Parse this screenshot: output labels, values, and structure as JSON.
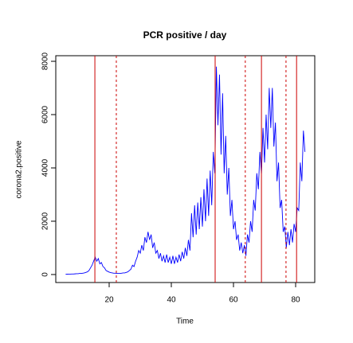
{
  "chart_data": {
    "type": "line",
    "title": "PCR positive / day",
    "xlabel": "Time",
    "ylabel": "corona2.positive",
    "color": "#0000ff",
    "x": [
      6,
      6.5,
      7,
      7.5,
      8,
      8.5,
      9,
      9.5,
      10,
      10.5,
      11,
      11.5,
      12,
      12.5,
      13,
      13.5,
      14,
      14.5,
      15,
      15.5,
      16,
      16.5,
      17,
      17.5,
      18,
      18.5,
      19,
      19.5,
      20,
      20.5,
      21,
      21.5,
      22,
      22.5,
      23,
      23.5,
      24,
      24.5,
      25,
      25.5,
      26,
      26.5,
      27,
      27.5,
      28,
      28.5,
      29,
      29.5,
      30,
      30.5,
      31,
      31.5,
      32,
      32.5,
      33,
      33.5,
      34,
      34.5,
      35,
      35.5,
      36,
      36.5,
      37,
      37.5,
      38,
      38.5,
      39,
      39.5,
      40,
      40.5,
      41,
      41.5,
      42,
      42.5,
      43,
      43.5,
      44,
      44.5,
      45,
      45.5,
      46,
      46.5,
      47,
      47.5,
      48,
      48.5,
      49,
      49.5,
      50,
      50.5,
      51,
      51.5,
      52,
      52.5,
      53,
      53.5,
      54,
      54.5,
      55,
      55.5,
      56,
      56.5,
      57,
      57.5,
      58,
      58.5,
      59,
      59.5,
      60,
      60.5,
      61,
      61.5,
      62,
      62.5,
      63,
      63.5,
      64,
      64.5,
      65,
      65.5,
      66,
      66.5,
      67,
      67.5,
      68,
      68.5,
      69,
      69.5,
      70,
      70.5,
      71,
      71.5,
      72,
      72.5,
      73,
      73.5,
      74,
      74.5,
      75,
      75.5,
      76,
      76.5,
      77,
      77.5,
      78,
      78.5,
      79,
      79.5,
      80,
      80.5,
      81,
      81.5,
      82,
      82.5,
      83
    ],
    "values": [
      10,
      10,
      15,
      15,
      20,
      20,
      25,
      30,
      30,
      40,
      40,
      50,
      60,
      80,
      100,
      150,
      250,
      350,
      500,
      650,
      500,
      600,
      400,
      450,
      300,
      250,
      150,
      120,
      90,
      70,
      60,
      50,
      50,
      40,
      40,
      40,
      50,
      60,
      60,
      80,
      100,
      150,
      200,
      350,
      300,
      500,
      650,
      900,
      800,
      1100,
      900,
      1400,
      1200,
      1600,
      1300,
      1500,
      1000,
      1200,
      800,
      900,
      600,
      800,
      500,
      700,
      450,
      750,
      450,
      650,
      400,
      700,
      400,
      650,
      450,
      750,
      500,
      850,
      600,
      1000,
      700,
      1300,
      900,
      2300,
      1400,
      2600,
      1500,
      2700,
      1700,
      2900,
      1800,
      3200,
      2000,
      3600,
      2200,
      3900,
      2600,
      4600,
      3800,
      7800,
      5600,
      7500,
      4500,
      6800,
      3800,
      5200,
      3000,
      4000,
      2200,
      2800,
      1700,
      2000,
      1300,
      1500,
      900,
      1200,
      800,
      1100,
      700,
      1500,
      1200,
      2000,
      1600,
      2800,
      2400,
      3800,
      3200,
      4600,
      3800,
      5500,
      4200,
      6000,
      4700,
      7000,
      5500,
      7000,
      4800,
      5700,
      3500,
      4200,
      2500,
      2800,
      1600,
      1800,
      1000,
      1600,
      1100,
      1700,
      1200,
      1900,
      1600,
      2500,
      2400,
      4200,
      3500,
      5400,
      4600
    ],
    "xlim": [
      2.82,
      86.15
    ],
    "ylim": [
      -300,
      8210
    ],
    "xticks": [
      20,
      40,
      60,
      80
    ],
    "yticks": [
      0,
      2000,
      4000,
      6000,
      8000
    ],
    "vline_color": "#cc0000",
    "vlines": [
      {
        "x": 15.4,
        "style": "solid"
      },
      {
        "x": 22.3,
        "style": "dashed"
      },
      {
        "x": 54.1,
        "style": "solid"
      },
      {
        "x": 63.8,
        "style": "dashed"
      },
      {
        "x": 69,
        "style": "solid"
      },
      {
        "x": 76.9,
        "style": "dashed"
      },
      {
        "x": 80.3,
        "style": "solid"
      }
    ]
  }
}
